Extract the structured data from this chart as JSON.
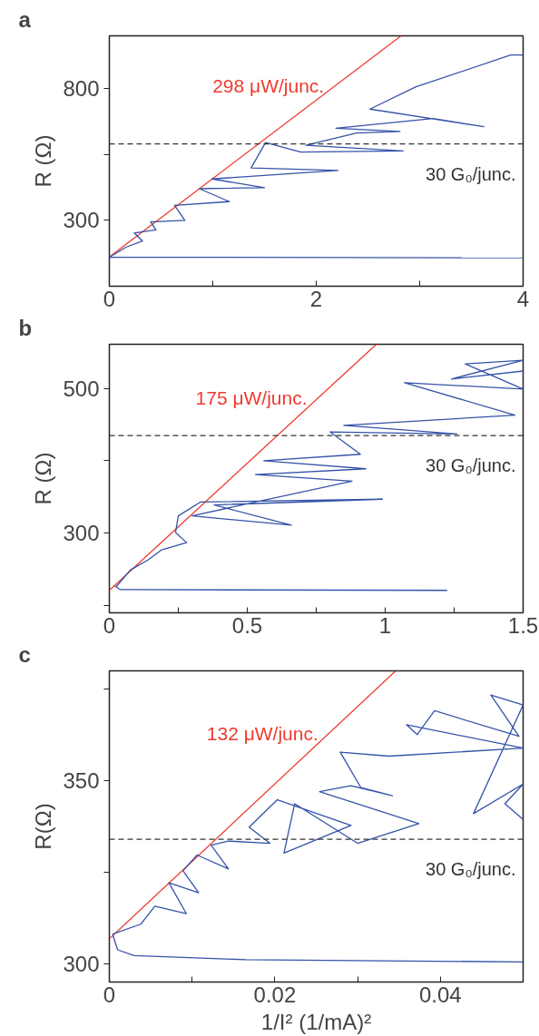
{
  "chart_data": [
    {
      "type": "line",
      "title": "a",
      "ylabel": "R (Ω)",
      "xlim": [
        0,
        4
      ],
      "ylim": [
        50,
        1000
      ],
      "xticks": [
        0,
        {
          "value": 1,
          "label": null
        },
        2,
        {
          "value": 3,
          "label": null
        },
        4
      ],
      "yticks": [
        300,
        {
          "value": 550,
          "label": null
        },
        800
      ],
      "tick_labels": true,
      "series": [
        {
          "name": "298 μW/junc.",
          "color": "#ee3b2f",
          "x": [
            0,
            2.82
          ],
          "values": [
            161,
            1000
          ]
        },
        {
          "color": "#3553a8",
          "x": [
            0.007,
            0.16,
            0.32,
            0.24,
            0.45,
            0.4,
            0.73,
            0.63,
            1.16,
            0.87,
            1.5,
            0.99,
            2.21,
            1.37,
            1.51,
            1.85,
            2.84,
            1.9,
            2.39,
            2.81,
            2.19,
            3.13,
            3.62,
            2.52,
            2.96,
            3.88,
            4.0
          ],
          "values": [
            161,
            198,
            222,
            252,
            264,
            294,
            300,
            357,
            371,
            420,
            424,
            457,
            489,
            499,
            595,
            559,
            563,
            585,
            631,
            637,
            649,
            686,
            655,
            722,
            806,
            927,
            927
          ]
        },
        {
          "color": "#3553a8",
          "x": [
            0,
            4
          ],
          "values": [
            160,
            158
          ]
        }
      ],
      "ref_lines": [
        {
          "axis": "y",
          "value": 590,
          "label": "30 G₀/junc.",
          "color": "#333333",
          "line_style": "dashed"
        }
      ]
    },
    {
      "type": "line",
      "title": "b",
      "ylabel": "R (Ω)",
      "xlim": [
        0,
        1.5
      ],
      "ylim": [
        190,
        561
      ],
      "xticks": [
        0,
        {
          "value": 0.25,
          "label": null
        },
        0.5,
        {
          "value": 0.75,
          "label": null
        },
        1,
        {
          "value": 1.25,
          "label": null
        },
        1.5
      ],
      "yticks": [
        {
          "value": 200,
          "label": null
        },
        300,
        {
          "value": 400,
          "label": null
        },
        500
      ],
      "series": [
        {
          "name": "175 μW/junc.",
          "color": "#ee3b2f",
          "x": [
            0,
            0.968
          ],
          "values": [
            221,
            561
          ]
        },
        {
          "color": "#3553a8",
          "x": [
            0.025,
            0.076,
            0.14,
            0.19,
            0.28,
            0.24,
            0.25,
            0.33,
            0.99,
            0.38,
            0.66,
            0.3,
            0.88,
            0.53,
            0.93,
            0.56,
            0.91,
            0.8,
            1.26,
            0.85,
            1.47,
            1.07,
            1.5,
            1.29,
            1.5,
            1.24,
            1.5
          ],
          "values": [
            226,
            249,
            263,
            277,
            287,
            301,
            324,
            343,
            347,
            339,
            311,
            324,
            372,
            381,
            389,
            400,
            409,
            440,
            437,
            449,
            463,
            508,
            499,
            534,
            539,
            513,
            524
          ]
        },
        {
          "color": "#3553a8",
          "x": [
            0.02,
            0.04,
            1.225
          ],
          "values": [
            227,
            222,
            221
          ]
        }
      ],
      "ref_lines": [
        {
          "axis": "y",
          "value": 435,
          "label": "30 G₀/junc.",
          "color": "#333333",
          "line_style": "dashed"
        }
      ]
    },
    {
      "type": "line",
      "title": "c",
      "ylabel": "R(Ω)",
      "xlabel": "1/I² (1/mA)²",
      "xlim": [
        0,
        0.05
      ],
      "ylim": [
        295,
        380
      ],
      "xticks": [
        0,
        {
          "value": 0.01,
          "label": null
        },
        0.02,
        {
          "value": 0.03,
          "label": null
        },
        0.04
      ],
      "yticks": [
        300,
        {
          "value": 325,
          "label": null
        },
        350,
        {
          "value": 375,
          "label": null
        }
      ],
      "series": [
        {
          "name": "132 μW/junc.",
          "color": "#ee3b2f",
          "x": [
            0,
            0.0346
          ],
          "values": [
            306.8,
            380
          ]
        },
        {
          "color": "#3553a8",
          "x": [
            0.0004,
            0.0038,
            0.0055,
            0.0093,
            0.0072,
            0.0108,
            0.0089,
            0.0106,
            0.0144,
            0.0123,
            0.0144,
            0.0194,
            0.0169,
            0.0203,
            0.0292,
            0.0211,
            0.0224,
            0.03,
            0.0374,
            0.0254,
            0.0292,
            0.0342,
            0.0304,
            0.0279,
            0.0338,
            0.05,
            0.0359,
            0.0372,
            0.0393,
            0.0495,
            0.0461,
            0.05,
            0.044,
            0.05,
            0.0478,
            0.05
          ],
          "values": [
            308.1,
            310.8,
            315.7,
            313.7,
            322.1,
            319.4,
            325.4,
            329.7,
            325.9,
            332.4,
            333.5,
            332.9,
            337.3,
            344.8,
            337.8,
            330.2,
            343.7,
            332.9,
            338.3,
            347,
            348.6,
            345.9,
            348.1,
            357.8,
            356.7,
            358.9,
            365.3,
            362.6,
            369.1,
            362.1,
            373.4,
            370.7,
            341,
            349.1,
            343.7,
            339.4
          ]
        },
        {
          "color": "#3553a8",
          "x": [
            0.0004,
            0.001,
            0.003,
            0.0165,
            0.05
          ],
          "values": [
            308,
            303.8,
            302.2,
            301.1,
            300.5
          ]
        }
      ],
      "ref_lines": [
        {
          "axis": "y",
          "value": 334,
          "label": "30 G₀/junc.",
          "color": "#333333",
          "line_style": "dashed"
        }
      ]
    }
  ]
}
